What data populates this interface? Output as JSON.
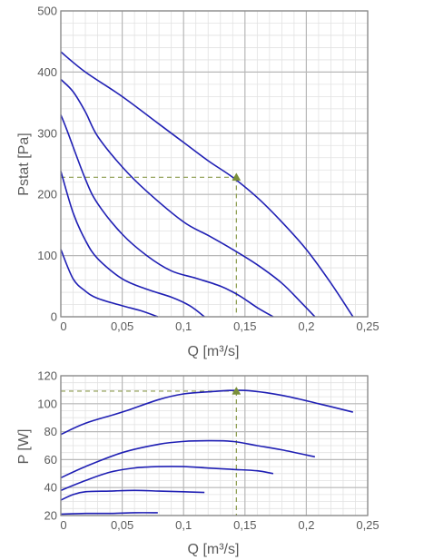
{
  "colors": {
    "curve": "#1f1fb4",
    "operating_point": "#7a8f3a",
    "guide_line": "#8a9a4a",
    "major_grid": "#b8b8b8",
    "minor_grid": "#e2e2e2",
    "frame": "#8a8a8a",
    "text": "#5a5a5a"
  },
  "chart_data": [
    {
      "type": "line",
      "id": "pressure",
      "xlabel": "Q [m³/s]",
      "ylabel": "Pstat [Pa]",
      "xlim": [
        0,
        0.25
      ],
      "ylim": [
        0,
        500
      ],
      "xticks": [
        0,
        0.05,
        0.1,
        0.15,
        0.2,
        0.25
      ],
      "xtick_labels": [
        "0",
        "0,05",
        "0,1",
        "0,15",
        "0,2",
        "0,25"
      ],
      "yticks": [
        0,
        100,
        200,
        300,
        400,
        500
      ],
      "ytick_labels": [
        "0",
        "100",
        "200",
        "300",
        "400",
        "500"
      ],
      "x_minor_step": 0.01,
      "y_minor_step": 20,
      "grid": true,
      "series": [
        {
          "x": [
            0,
            0.02,
            0.05,
            0.08,
            0.1,
            0.12,
            0.14,
            0.16,
            0.18,
            0.2,
            0.22,
            0.238
          ],
          "y": [
            433,
            400,
            360,
            315,
            285,
            255,
            228,
            195,
            155,
            110,
            55,
            0
          ]
        },
        {
          "x": [
            0,
            0.01,
            0.02,
            0.03,
            0.05,
            0.07,
            0.1,
            0.12,
            0.14,
            0.16,
            0.18,
            0.195,
            0.207
          ],
          "y": [
            388,
            368,
            335,
            295,
            245,
            205,
            155,
            133,
            110,
            85,
            55,
            25,
            0
          ]
        },
        {
          "x": [
            0,
            0.005,
            0.02,
            0.03,
            0.05,
            0.07,
            0.09,
            0.11,
            0.13,
            0.145,
            0.16,
            0.173
          ],
          "y": [
            330,
            305,
            225,
            185,
            135,
            100,
            75,
            63,
            50,
            35,
            15,
            0
          ]
        },
        {
          "x": [
            0,
            0.01,
            0.02,
            0.03,
            0.05,
            0.07,
            0.09,
            0.105,
            0.117
          ],
          "y": [
            238,
            170,
            125,
            95,
            62,
            45,
            32,
            18,
            0
          ]
        },
        {
          "x": [
            0,
            0.01,
            0.02,
            0.03,
            0.05,
            0.065,
            0.079
          ],
          "y": [
            110,
            62,
            42,
            30,
            18,
            10,
            0
          ]
        }
      ],
      "operating_point": {
        "x": 0.143,
        "y": 228
      }
    },
    {
      "type": "line",
      "id": "power",
      "xlabel": "Q [m³/s]",
      "ylabel": "P [W]",
      "xlim": [
        0,
        0.25
      ],
      "ylim": [
        20,
        120
      ],
      "xticks": [
        0,
        0.05,
        0.1,
        0.15,
        0.2,
        0.25
      ],
      "xtick_labels": [
        "0",
        "0,05",
        "0,1",
        "0,15",
        "0,2",
        "0,25"
      ],
      "yticks": [
        20,
        40,
        60,
        80,
        100,
        120
      ],
      "ytick_labels": [
        "20",
        "40",
        "60",
        "80",
        "100",
        "120"
      ],
      "x_minor_step": 0.01,
      "y_minor_step": 5,
      "grid": true,
      "series": [
        {
          "x": [
            0,
            0.02,
            0.05,
            0.08,
            0.1,
            0.12,
            0.15,
            0.18,
            0.21,
            0.238
          ],
          "y": [
            78,
            86,
            94,
            103,
            107,
            108.5,
            109.5,
            106,
            100,
            94
          ]
        },
        {
          "x": [
            0,
            0.02,
            0.05,
            0.08,
            0.1,
            0.12,
            0.14,
            0.16,
            0.18,
            0.207
          ],
          "y": [
            47,
            55,
            65,
            71,
            73,
            73.5,
            73,
            70,
            67,
            62
          ]
        },
        {
          "x": [
            0,
            0.02,
            0.04,
            0.06,
            0.08,
            0.1,
            0.12,
            0.14,
            0.16,
            0.173
          ],
          "y": [
            38,
            45,
            51,
            54,
            55,
            55,
            54,
            53,
            52,
            50
          ]
        },
        {
          "x": [
            0,
            0.01,
            0.02,
            0.04,
            0.06,
            0.08,
            0.1,
            0.117
          ],
          "y": [
            31,
            35,
            37,
            37.5,
            38,
            37.5,
            37,
            36.5
          ]
        },
        {
          "x": [
            0,
            0.02,
            0.04,
            0.06,
            0.079
          ],
          "y": [
            21,
            21.5,
            21.5,
            22,
            22
          ]
        }
      ],
      "operating_point": {
        "x": 0.143,
        "y": 109
      }
    }
  ]
}
